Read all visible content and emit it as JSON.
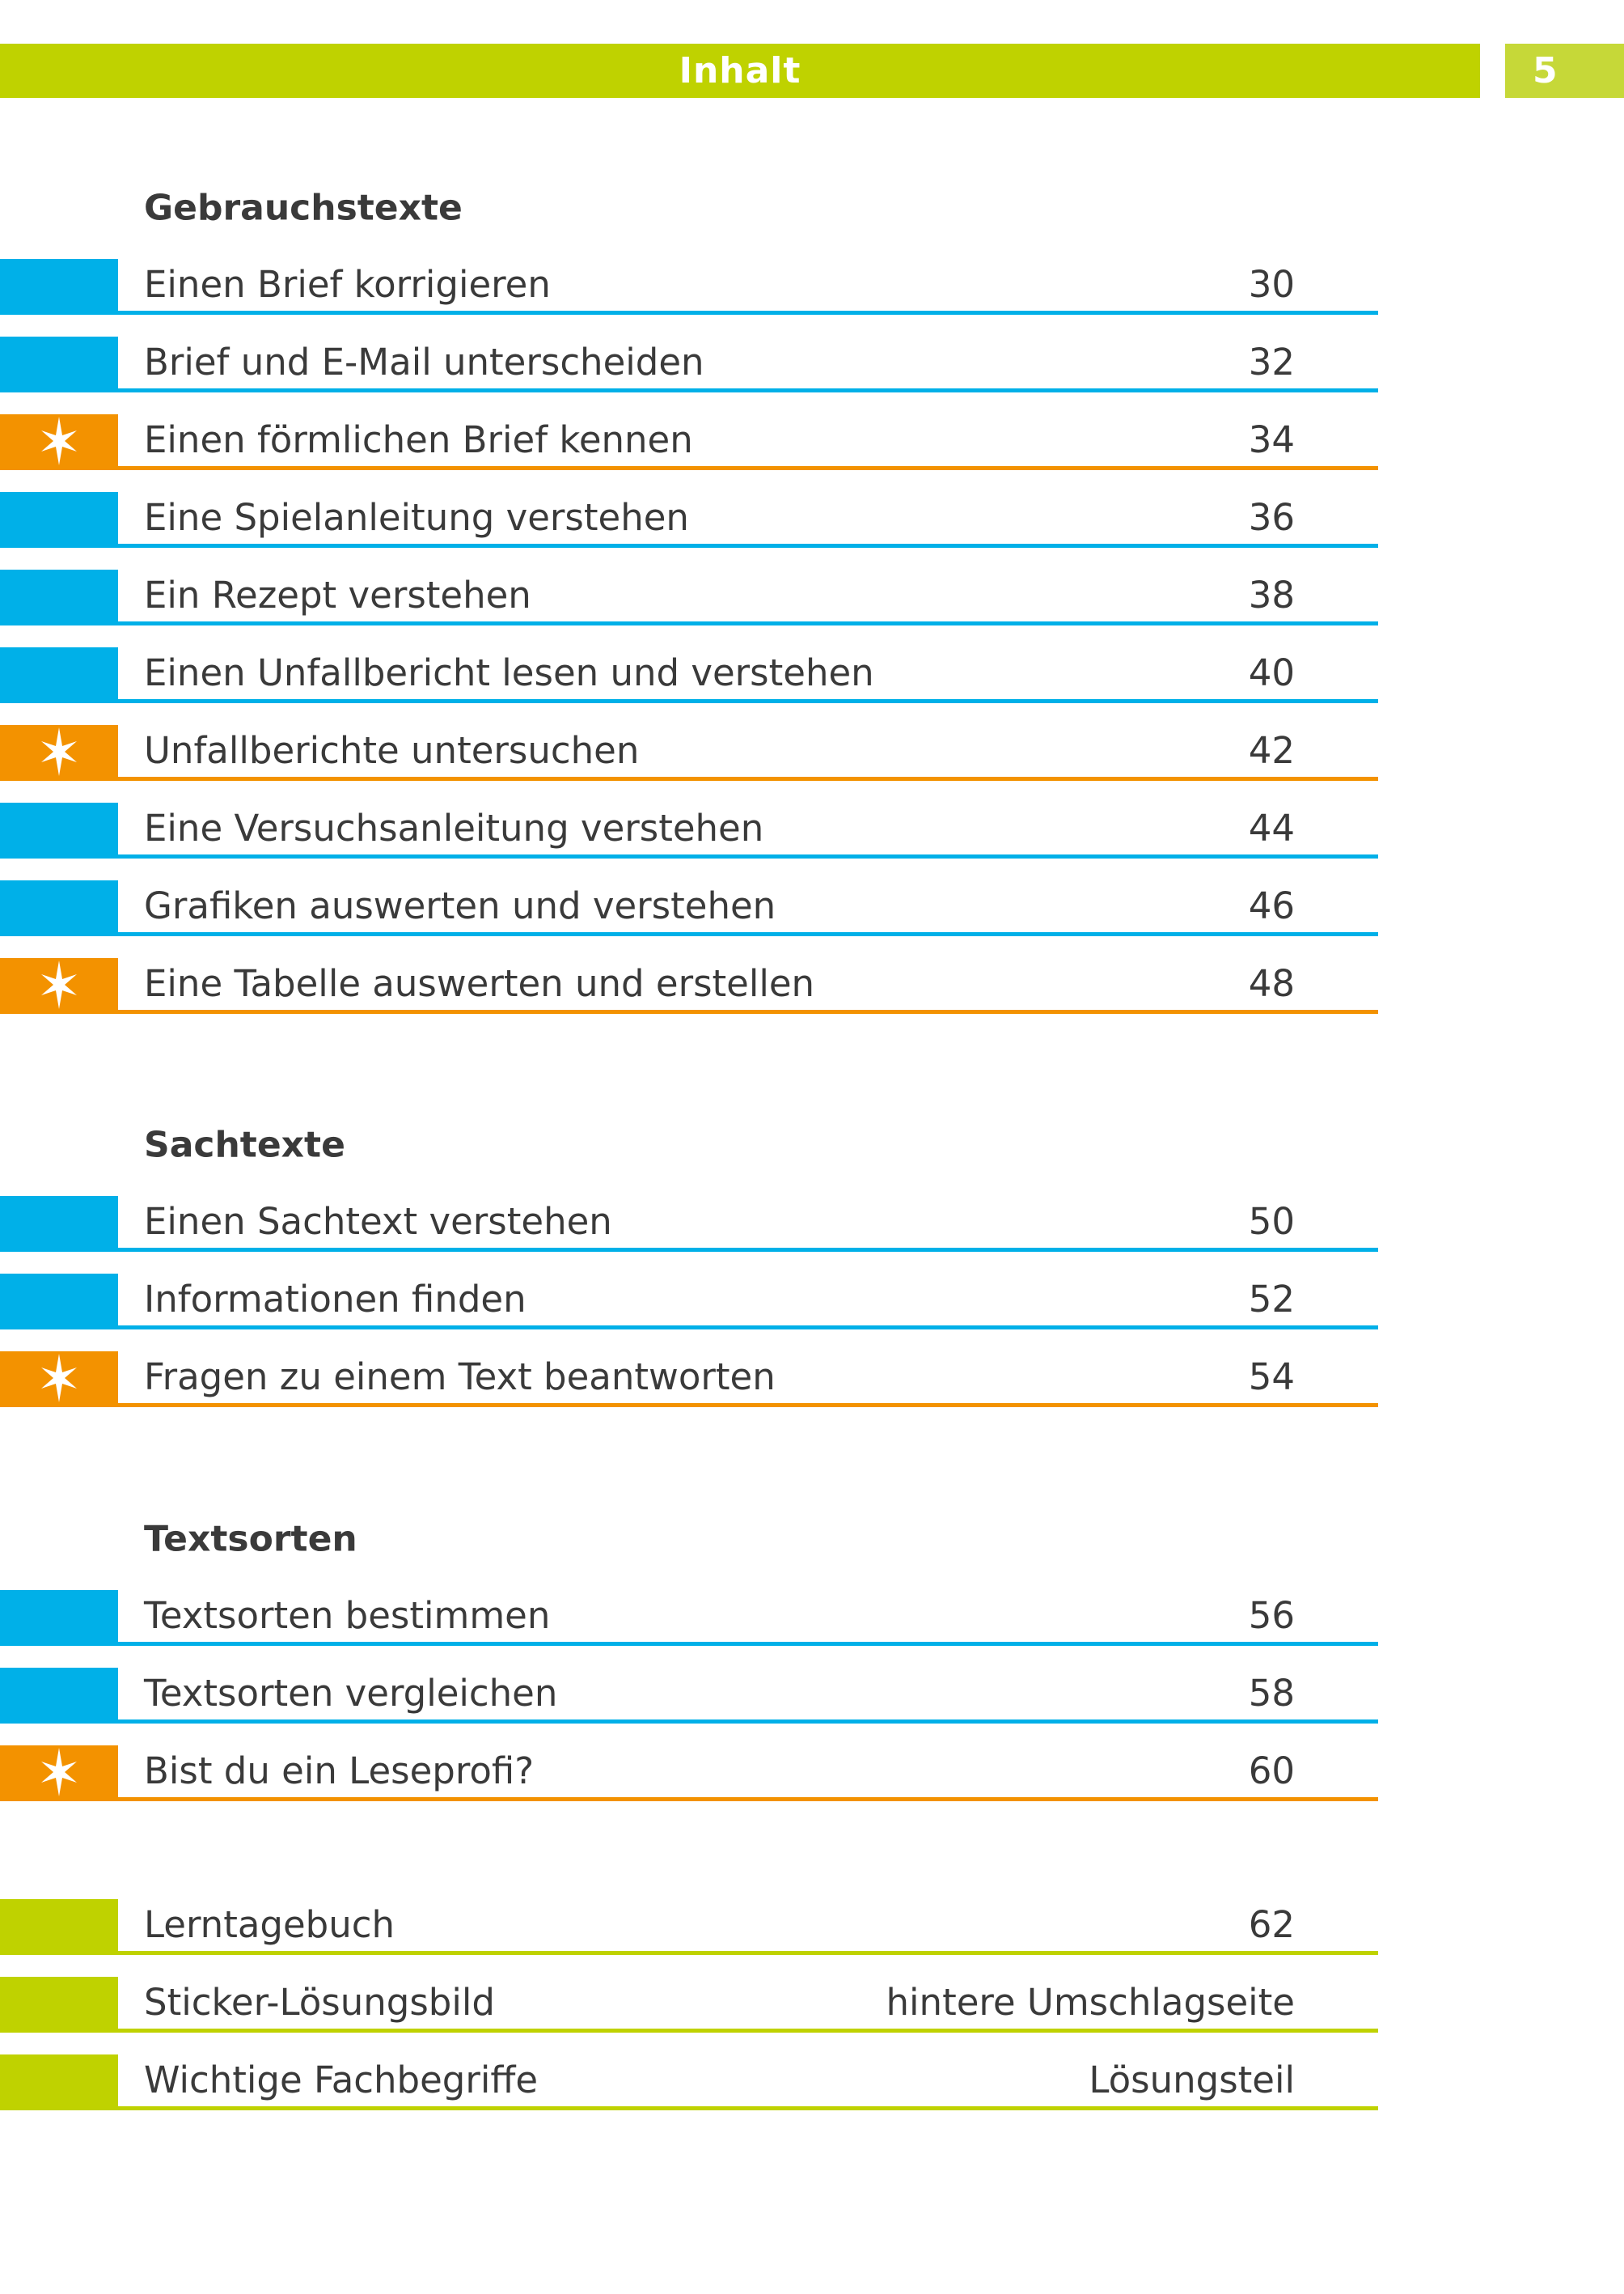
{
  "header": {
    "title": "Inhalt",
    "page_number": "5"
  },
  "colors": {
    "green": "#bfd200",
    "green_light": "#c6d838",
    "blue": "#00b0e8",
    "orange": "#f39200",
    "text": "#3a3a3a"
  },
  "sections": [
    {
      "title": "Gebrauchstexte",
      "rows": [
        {
          "label": "Einen Brief korrigieren",
          "page": "30",
          "kind": "blue"
        },
        {
          "label": "Brief und E-Mail unterscheiden",
          "page": "32",
          "kind": "blue"
        },
        {
          "label": "Einen förmlichen Brief kennen",
          "page": "34",
          "kind": "star"
        },
        {
          "label": "Eine Spielanleitung verstehen",
          "page": "36",
          "kind": "blue"
        },
        {
          "label": "Ein Rezept verstehen",
          "page": "38",
          "kind": "blue"
        },
        {
          "label": "Einen Unfallbericht lesen und verstehen",
          "page": "40",
          "kind": "blue"
        },
        {
          "label": "Unfallberichte untersuchen",
          "page": "42",
          "kind": "star"
        },
        {
          "label": "Eine Versuchsanleitung verstehen",
          "page": "44",
          "kind": "blue"
        },
        {
          "label": "Grafiken auswerten und verstehen",
          "page": "46",
          "kind": "blue"
        },
        {
          "label": "Eine Tabelle auswerten und erstellen",
          "page": "48",
          "kind": "star"
        }
      ]
    },
    {
      "title": "Sachtexte",
      "rows": [
        {
          "label": "Einen Sachtext verstehen",
          "page": "50",
          "kind": "blue"
        },
        {
          "label": "Informationen finden",
          "page": "52",
          "kind": "blue"
        },
        {
          "label": "Fragen zu einem Text beantworten",
          "page": "54",
          "kind": "star"
        }
      ]
    },
    {
      "title": "Textsorten",
      "rows": [
        {
          "label": "Textsorten bestimmen",
          "page": "56",
          "kind": "blue"
        },
        {
          "label": "Textsorten vergleichen",
          "page": "58",
          "kind": "blue"
        },
        {
          "label": "Bist du ein Leseprofi?",
          "page": "60",
          "kind": "star"
        }
      ]
    },
    {
      "title": "",
      "rows": [
        {
          "label": "Lerntagebuch",
          "page": "62",
          "kind": "green"
        },
        {
          "label": "Sticker-Lösungsbild",
          "page": "hintere Umschlagseite",
          "kind": "green"
        },
        {
          "label": "Wichtige Fachbegriffe",
          "page": "Lösungsteil",
          "kind": "green"
        }
      ]
    }
  ]
}
